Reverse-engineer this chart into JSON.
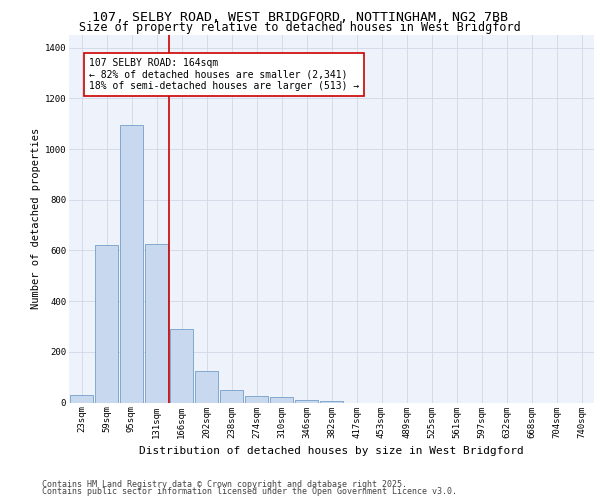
{
  "title_line1": "107, SELBY ROAD, WEST BRIDGFORD, NOTTINGHAM, NG2 7BB",
  "title_line2": "Size of property relative to detached houses in West Bridgford",
  "xlabel": "Distribution of detached houses by size in West Bridgford",
  "ylabel": "Number of detached properties",
  "categories": [
    "23sqm",
    "59sqm",
    "95sqm",
    "131sqm",
    "166sqm",
    "202sqm",
    "238sqm",
    "274sqm",
    "310sqm",
    "346sqm",
    "382sqm",
    "417sqm",
    "453sqm",
    "489sqm",
    "525sqm",
    "561sqm",
    "597sqm",
    "632sqm",
    "668sqm",
    "704sqm",
    "740sqm"
  ],
  "values": [
    30,
    620,
    1095,
    625,
    290,
    125,
    50,
    25,
    20,
    10,
    5,
    0,
    0,
    0,
    0,
    0,
    0,
    0,
    0,
    0,
    0
  ],
  "bar_color": "#c8d8ee",
  "bar_edge_color": "#6090c0",
  "vline_color": "#cc0000",
  "vline_x_index": 3.5,
  "annotation_text": "107 SELBY ROAD: 164sqm\n← 82% of detached houses are smaller (2,341)\n18% of semi-detached houses are larger (513) →",
  "annotation_box_color": "#cc0000",
  "ylim": [
    0,
    1450
  ],
  "yticks": [
    0,
    200,
    400,
    600,
    800,
    1000,
    1200,
    1400
  ],
  "grid_color": "#d0d8e8",
  "plot_bg_color": "#eef2fa",
  "footer_line1": "Contains HM Land Registry data © Crown copyright and database right 2025.",
  "footer_line2": "Contains public sector information licensed under the Open Government Licence v3.0.",
  "title_fontsize": 9.5,
  "subtitle_fontsize": 8.5,
  "ylabel_fontsize": 7.5,
  "xlabel_fontsize": 8,
  "tick_fontsize": 6.5,
  "annotation_fontsize": 7,
  "footer_fontsize": 6
}
